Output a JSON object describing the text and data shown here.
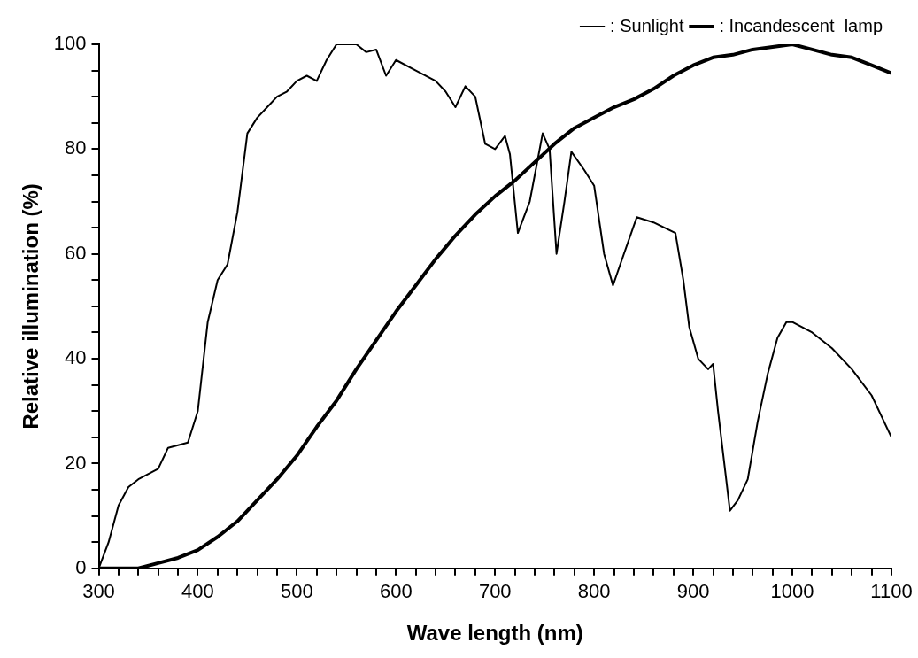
{
  "chart_data": {
    "type": "line",
    "xlabel": "Wave length (nm)",
    "ylabel": "Relative illumination (%)",
    "xlim": [
      300,
      1100
    ],
    "ylim": [
      0,
      100
    ],
    "xticks": [
      300,
      {
        "value": 320,
        "label": null
      },
      {
        "value": 340,
        "label": null
      },
      {
        "value": 360,
        "label": null
      },
      {
        "value": 380,
        "label": null
      },
      400,
      {
        "value": 420,
        "label": null
      },
      {
        "value": 440,
        "label": null
      },
      {
        "value": 460,
        "label": null
      },
      {
        "value": 480,
        "label": null
      },
      500,
      {
        "value": 520,
        "label": null
      },
      {
        "value": 540,
        "label": null
      },
      {
        "value": 560,
        "label": null
      },
      {
        "value": 580,
        "label": null
      },
      600,
      {
        "value": 620,
        "label": null
      },
      {
        "value": 640,
        "label": null
      },
      {
        "value": 660,
        "label": null
      },
      {
        "value": 680,
        "label": null
      },
      700,
      {
        "value": 720,
        "label": null
      },
      {
        "value": 740,
        "label": null
      },
      {
        "value": 760,
        "label": null
      },
      {
        "value": 780,
        "label": null
      },
      800,
      {
        "value": 820,
        "label": null
      },
      {
        "value": 840,
        "label": null
      },
      {
        "value": 860,
        "label": null
      },
      {
        "value": 880,
        "label": null
      },
      900,
      {
        "value": 920,
        "label": null
      },
      {
        "value": 940,
        "label": null
      },
      {
        "value": 960,
        "label": null
      },
      {
        "value": 980,
        "label": null
      },
      1000,
      {
        "value": 1020,
        "label": null
      },
      {
        "value": 1040,
        "label": null
      },
      {
        "value": 1060,
        "label": null
      },
      {
        "value": 1080,
        "label": null
      },
      1100
    ],
    "yticks": [
      0,
      {
        "value": 5,
        "label": null
      },
      {
        "value": 10,
        "label": null
      },
      {
        "value": 15,
        "label": null
      },
      20,
      {
        "value": 25,
        "label": null
      },
      {
        "value": 30,
        "label": null
      },
      {
        "value": 35,
        "label": null
      },
      40,
      {
        "value": 45,
        "label": null
      },
      {
        "value": 50,
        "label": null
      },
      {
        "value": 55,
        "label": null
      },
      60,
      {
        "value": 65,
        "label": null
      },
      {
        "value": 70,
        "label": null
      },
      {
        "value": 75,
        "label": null
      },
      80,
      {
        "value": 85,
        "label": null
      },
      {
        "value": 90,
        "label": null
      },
      {
        "value": 95,
        "label": null
      },
      100
    ],
    "grid": false,
    "legend": "top right",
    "marker": "none",
    "line_style": "solid",
    "series": [
      {
        "name": ": Sunlight",
        "color": "#000000",
        "x": [
          300,
          310,
          320,
          330,
          340,
          360,
          370,
          390,
          400,
          410,
          420,
          430,
          440,
          450,
          460,
          470,
          480,
          490,
          500,
          510,
          520,
          530,
          540,
          560,
          570,
          580,
          590,
          600,
          620,
          640,
          650,
          660,
          670,
          680,
          690,
          700,
          710,
          715,
          723,
          735,
          745,
          748,
          755,
          762,
          770,
          777,
          790,
          800,
          810,
          819,
          830,
          843,
          860,
          882,
          890,
          896,
          905,
          915,
          920,
          925,
          937,
          945,
          955,
          965,
          975,
          985,
          994,
          1000,
          1020,
          1040,
          1060,
          1080,
          1090,
          1100
        ],
        "values": [
          0,
          5,
          12,
          15.5,
          17,
          19,
          23,
          24,
          30,
          47,
          55,
          58,
          68,
          83,
          86,
          88,
          90,
          91,
          93,
          94,
          93,
          97,
          100,
          100,
          98.5,
          99,
          94,
          97,
          95,
          93,
          91,
          88,
          92,
          90,
          81,
          80,
          82.5,
          79,
          64,
          70,
          80,
          83,
          80,
          60,
          70,
          79.5,
          76,
          73,
          60,
          54,
          60,
          67,
          66,
          64,
          55,
          46,
          40,
          38,
          39,
          30,
          11,
          13,
          17,
          28,
          37,
          44,
          47,
          47,
          45,
          42,
          38,
          33,
          29,
          25
        ]
      },
      {
        "name": ": Incandescent  lamp",
        "color": "#000000",
        "x": [
          300,
          320,
          340,
          360,
          380,
          400,
          420,
          440,
          460,
          480,
          500,
          520,
          540,
          560,
          580,
          600,
          620,
          640,
          660,
          680,
          700,
          720,
          740,
          760,
          780,
          800,
          820,
          840,
          860,
          880,
          900,
          920,
          940,
          960,
          980,
          1000,
          1020,
          1040,
          1060,
          1080,
          1100
        ],
        "values": [
          0,
          0,
          0,
          1,
          2,
          3.5,
          6,
          9,
          13,
          17,
          21.5,
          27,
          32,
          38,
          43.5,
          49,
          54,
          59,
          63.5,
          67.5,
          71,
          74,
          77.5,
          81,
          84,
          86,
          88,
          89.5,
          91.5,
          94,
          96,
          97.5,
          98,
          99,
          99.5,
          100,
          99,
          98,
          97.5,
          96,
          94.5
        ]
      }
    ]
  }
}
